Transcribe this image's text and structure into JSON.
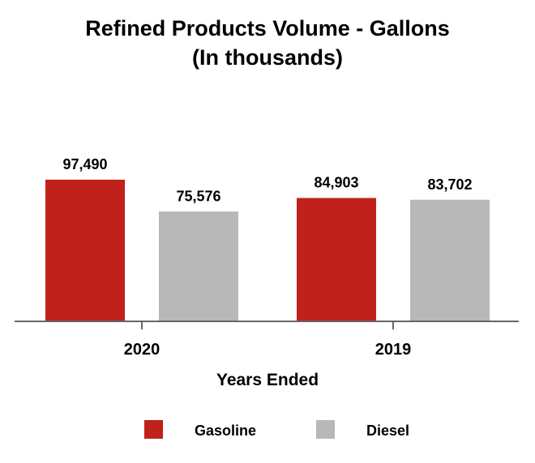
{
  "chart_data": {
    "type": "bar",
    "title_lines": [
      "Refined Products Volume - Gallons",
      "(In thousands)"
    ],
    "xlabel": "Years Ended",
    "ylabel": "",
    "categories": [
      "2020",
      "2019"
    ],
    "series": [
      {
        "name": "Gasoline",
        "color": "#c0211a",
        "values": [
          97490,
          84903
        ],
        "labels": [
          "97,490",
          "84,903"
        ]
      },
      {
        "name": "Diesel",
        "color": "#b8b8b8",
        "values": [
          75576,
          83702
        ],
        "labels": [
          "75,576",
          "83,702"
        ]
      }
    ],
    "ylim": [
      0,
      100000
    ],
    "grid": false,
    "legend_position": "bottom"
  }
}
